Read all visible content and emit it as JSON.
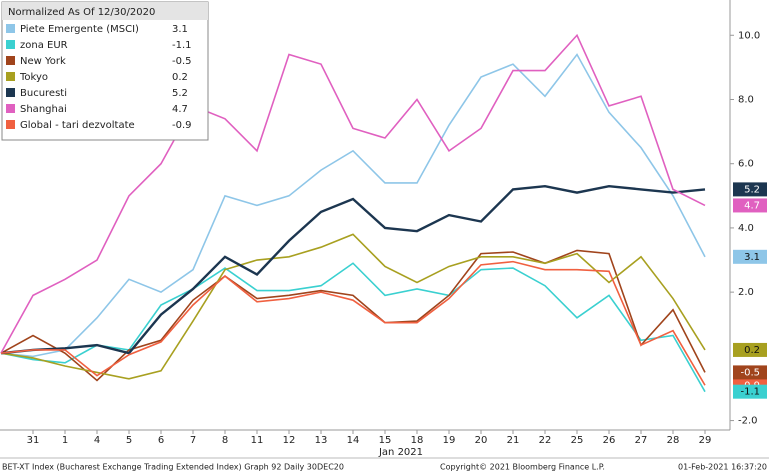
{
  "chart_data": {
    "type": "line",
    "legend_title": "Normalized As Of 12/30/2020",
    "categories": [
      null,
      "31",
      "1",
      "4",
      "5",
      "6",
      "7",
      "8",
      "11",
      "12",
      "13",
      "14",
      "15",
      "18",
      "19",
      "20",
      "21",
      "22",
      "25",
      "26",
      "27",
      "28",
      "29"
    ],
    "x_group_label": "Jan 2021",
    "series": [
      {
        "name": "Piete Emergente (MSCI)",
        "color": "#8ec6e8",
        "values": [
          0.1,
          0,
          0.2,
          1.2,
          2.4,
          2.0,
          2.7,
          5.0,
          4.7,
          5.0,
          5.8,
          6.4,
          5.4,
          5.4,
          7.2,
          8.7,
          9.1,
          8.1,
          9.4,
          7.6,
          6.5,
          5.0,
          3.1
        ]
      },
      {
        "name": "zona EUR",
        "color": "#3ad0d0",
        "values": [
          0.1,
          -0.1,
          -0.2,
          0.35,
          0.2,
          1.6,
          2.1,
          2.75,
          2.05,
          2.05,
          2.2,
          2.9,
          1.9,
          2.1,
          1.9,
          2.7,
          2.75,
          2.2,
          1.2,
          1.9,
          0.5,
          0.65,
          -1.1
        ]
      },
      {
        "name": "New York",
        "color": "#a0441c",
        "values": [
          0.1,
          0.65,
          0.1,
          -0.75,
          0.2,
          0.5,
          1.75,
          2.5,
          1.8,
          1.9,
          2.05,
          1.9,
          1.05,
          1.1,
          1.9,
          3.2,
          3.25,
          2.9,
          3.3,
          3.2,
          0.35,
          1.45,
          -0.5
        ]
      },
      {
        "name": "Tokyo",
        "color": "#a8a020",
        "values": [
          0.1,
          -0.05,
          -0.3,
          -0.5,
          -0.7,
          -0.45,
          1.1,
          2.7,
          3.0,
          3.1,
          3.4,
          3.8,
          2.8,
          2.3,
          2.8,
          3.1,
          3.1,
          2.9,
          3.2,
          2.3,
          3.1,
          1.8,
          0.2
        ]
      },
      {
        "name": "Bucuresti",
        "color": "#1c3650",
        "values": [
          0.1,
          0.2,
          0.25,
          0.35,
          0.1,
          1.3,
          2.1,
          3.1,
          2.55,
          3.6,
          4.5,
          4.9,
          4.0,
          3.9,
          4.4,
          4.2,
          5.2,
          5.3,
          5.1,
          5.3,
          5.2,
          5.1,
          5.2
        ]
      },
      {
        "name": "Shanghai",
        "color": "#e060c0",
        "values": [
          0.1,
          1.9,
          2.4,
          3.0,
          5.0,
          6.0,
          7.8,
          7.4,
          6.4,
          9.4,
          9.1,
          7.1,
          6.8,
          8.0,
          6.4,
          7.1,
          8.9,
          8.9,
          10.0,
          7.8,
          8.1,
          5.2,
          4.7
        ]
      },
      {
        "name": "Global - tari dezvoltate",
        "color": "#f06040",
        "values": [
          0.1,
          0.2,
          0.2,
          -0.6,
          0.05,
          0.45,
          1.6,
          2.5,
          1.7,
          1.8,
          2.0,
          1.75,
          1.05,
          1.05,
          1.8,
          2.85,
          2.95,
          2.7,
          2.7,
          2.65,
          0.35,
          0.8,
          -0.9
        ]
      }
    ],
    "ylim": [
      -2.2,
      10.6
    ],
    "yticks": [
      {
        "value": -2,
        "label": "-2.0"
      },
      {
        "value": 2,
        "label": "2.0"
      },
      {
        "value": 4,
        "label": "4.0"
      },
      {
        "value": 6,
        "label": "6.0"
      },
      {
        "value": 8,
        "label": "8.0"
      },
      {
        "value": 10,
        "label": "10.0"
      }
    ],
    "footer": [
      "BET-XT Index (Bucharest Exchange Trading Extended Index) Graph 92  Daily 30DEC20",
      "Copyright© 2021 Bloomberg Finance L.P.",
      "01-Feb-2021 16:37:20"
    ]
  }
}
